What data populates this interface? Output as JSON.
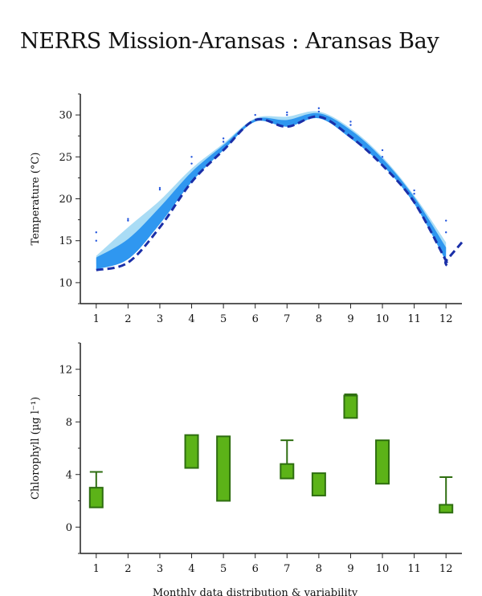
{
  "title": "NERRS Mission-Aransas : Aransas Bay",
  "chart_data": [
    {
      "type": "area",
      "ylabel": "Temperature (°C)",
      "xlabel": "",
      "x": [
        1,
        2,
        3,
        4,
        5,
        6,
        7,
        8,
        9,
        10,
        11,
        12
      ],
      "xlim": [
        0.5,
        12.5
      ],
      "ylim": [
        7.5,
        32.5
      ],
      "yticks": [
        10,
        15,
        20,
        25,
        30
      ],
      "band_outer_low": [
        12.2,
        14.6,
        18.6,
        22.8,
        26.2,
        29.4,
        29.2,
        30.0,
        27.8,
        24.4,
        19.8,
        13.6
      ],
      "band_outer_high": [
        13.2,
        16.6,
        19.8,
        23.6,
        26.6,
        29.6,
        29.8,
        30.4,
        28.4,
        25.0,
        20.4,
        14.8
      ],
      "band_inner_low": [
        11.6,
        12.8,
        17.0,
        22.0,
        25.8,
        29.2,
        28.6,
        29.6,
        27.2,
        24.0,
        19.4,
        12.6
      ],
      "band_inner_high": [
        13.0,
        15.2,
        19.0,
        23.2,
        26.4,
        29.5,
        29.4,
        30.2,
        28.2,
        24.8,
        20.2,
        14.2
      ],
      "dashed_curve": [
        11.5,
        12.4,
        16.6,
        22.0,
        25.8,
        29.4,
        28.6,
        29.8,
        27.4,
        24.0,
        19.6,
        12.6
      ],
      "dashed_tail": [
        [
          12.0,
          12.6
        ],
        [
          12.5,
          14.8
        ]
      ],
      "points": [
        [
          1,
          16
        ],
        [
          1,
          15
        ],
        [
          2,
          17.6
        ],
        [
          2,
          17.4
        ],
        [
          3,
          21.3
        ],
        [
          3,
          21.1
        ],
        [
          4,
          25
        ],
        [
          4,
          24.2
        ],
        [
          5,
          27.2
        ],
        [
          5,
          26.8
        ],
        [
          6,
          30
        ],
        [
          7,
          30.3
        ],
        [
          7,
          30
        ],
        [
          8,
          30.8
        ],
        [
          8,
          30.4
        ],
        [
          9,
          29.2
        ],
        [
          9,
          28.8
        ],
        [
          10,
          25.8
        ],
        [
          10,
          25
        ],
        [
          11,
          21
        ],
        [
          11,
          20.6
        ],
        [
          12,
          17.4
        ],
        [
          12,
          16
        ]
      ],
      "colors": {
        "outer": "#a9dcf5",
        "inner": "#2f97f0",
        "dashed": "#1a2fa8",
        "points": "#2255dd"
      }
    },
    {
      "type": "box",
      "ylabel": "Chlorophyll (µg l⁻¹)",
      "xlabel": "Monthly data distribution & variability",
      "x": [
        1,
        2,
        3,
        4,
        5,
        6,
        7,
        8,
        9,
        10,
        11,
        12
      ],
      "xlim": [
        0.5,
        12.5
      ],
      "ylim": [
        -2,
        14
      ],
      "yticks": [
        0,
        4,
        8,
        12
      ],
      "boxes": [
        {
          "month": 1,
          "low": 1.5,
          "high": 3.0,
          "whisker": 4.2
        },
        {
          "month": 4,
          "low": 4.5,
          "high": 7.0,
          "whisker": null
        },
        {
          "month": 5,
          "low": 2.0,
          "high": 6.9,
          "whisker": null
        },
        {
          "month": 7,
          "low": 3.7,
          "high": 4.8,
          "whisker": 6.6
        },
        {
          "month": 8,
          "low": 2.4,
          "high": 4.1,
          "whisker": null
        },
        {
          "month": 9,
          "low": 8.3,
          "high": 10.0,
          "whisker": 10.1
        },
        {
          "month": 10,
          "low": 3.3,
          "high": 6.6,
          "whisker": null
        },
        {
          "month": 12,
          "low": 1.1,
          "high": 1.7,
          "whisker": 3.8
        }
      ],
      "colors": {
        "box": "#5cb318",
        "edge": "#2e6e10"
      }
    }
  ]
}
